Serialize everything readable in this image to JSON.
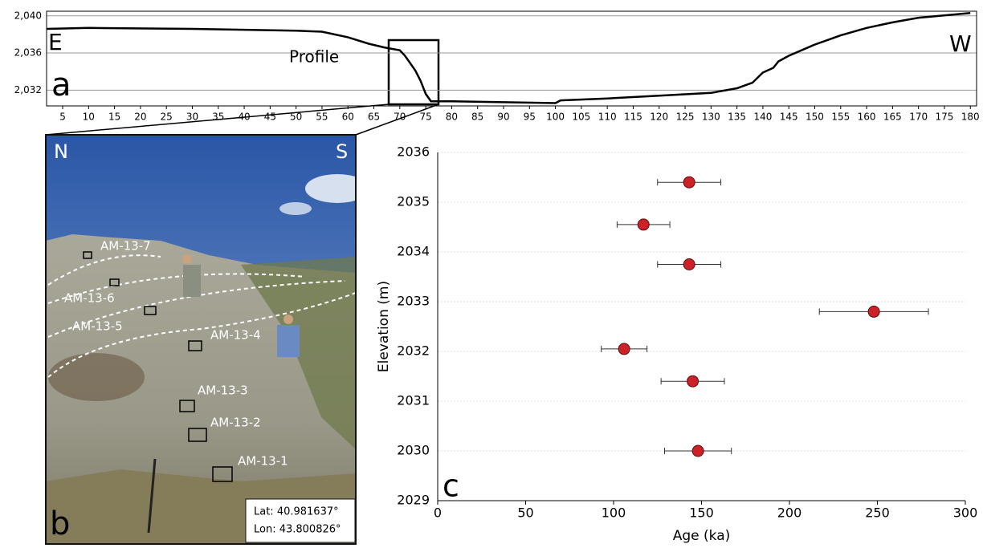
{
  "chart_data": [
    {
      "type": "line",
      "x": [
        2,
        10,
        30,
        50,
        55,
        60,
        64,
        67,
        70,
        71,
        73,
        74,
        75,
        76,
        80,
        90,
        100,
        101,
        110,
        120,
        130,
        135,
        138,
        140,
        142,
        143,
        145,
        150,
        155,
        160,
        165,
        170,
        180
      ],
      "values": [
        2038.6,
        2038.7,
        2038.6,
        2038.4,
        2038.3,
        2037.7,
        2037.0,
        2036.6,
        2036.3,
        2035.7,
        2034.1,
        2033.0,
        2031.6,
        2030.8,
        2030.8,
        2030.7,
        2030.6,
        2030.9,
        2031.1,
        2031.4,
        2031.7,
        2032.2,
        2032.8,
        2033.9,
        2034.4,
        2035.1,
        2035.7,
        2036.9,
        2037.9,
        2038.7,
        2039.3,
        2039.8,
        2040.3
      ],
      "color": "#000000",
      "xlim": [
        1.9,
        181.2
      ],
      "xticks": [
        5,
        10,
        15,
        20,
        25,
        30,
        35,
        40,
        45,
        50,
        55,
        60,
        65,
        70,
        75,
        80,
        85,
        90,
        95,
        100,
        105,
        110,
        115,
        120,
        125,
        130,
        135,
        140,
        145,
        150,
        155,
        160,
        165,
        170,
        175,
        180
      ],
      "ylim": [
        2030.3,
        2040.5
      ],
      "yticks": [
        {
          "value": 2032,
          "label": "2,032"
        },
        {
          "value": 2036,
          "label": "2,036"
        },
        {
          "value": 2040,
          "label": "2,040"
        }
      ],
      "grid": true,
      "annotations": {
        "panel": "a",
        "left": "E",
        "right": "W",
        "box": "Profile"
      }
    },
    {
      "type": "scatter",
      "x": [
        143,
        117,
        143,
        248,
        106,
        145,
        148
      ],
      "errors": [
        18,
        15,
        18,
        31,
        13,
        18,
        19
      ],
      "values": [
        2035.4,
        2034.55,
        2033.75,
        2032.8,
        2032.05,
        2031.4,
        2030.0
      ],
      "color": "#cc2127",
      "xlim": [
        0,
        300
      ],
      "xticks": [
        0,
        50,
        100,
        150,
        200,
        250,
        300
      ],
      "ylim": [
        2029,
        2036
      ],
      "yticks": [
        2029,
        2030,
        2031,
        2032,
        2033,
        2034,
        2035,
        2036
      ],
      "grid": true,
      "xlabel": "Age (ka)",
      "ylabel": "Elevation (m)",
      "panel": "c"
    }
  ],
  "photo": {
    "panel": "b",
    "left": "N",
    "right": "S",
    "samples": [
      "AM-13-7",
      "AM-13-6",
      "AM-13-5",
      "AM-13-4",
      "AM-13-3",
      "AM-13-2",
      "AM-13-1"
    ],
    "lat": "Lat:  40.981637°",
    "lon": "Lon:  43.800826°"
  }
}
